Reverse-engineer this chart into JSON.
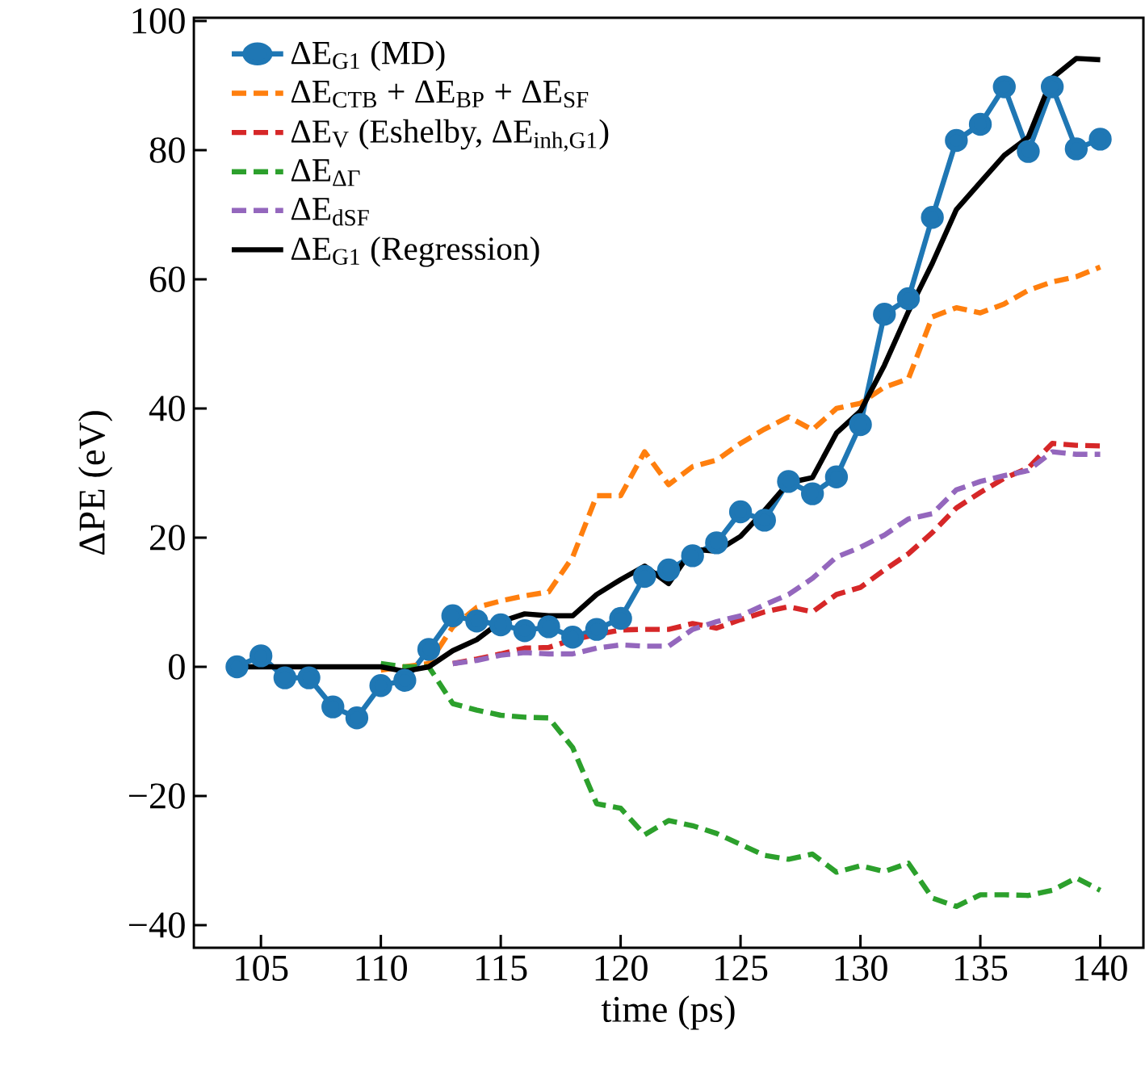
{
  "chart_data": {
    "type": "line",
    "xlabel": "time (ps)",
    "ylabel": "ΔPE (eV)",
    "xlim": [
      102.2,
      141.8
    ],
    "ylim": [
      -43.5,
      100.5
    ],
    "xticks": [
      105,
      110,
      115,
      120,
      125,
      130,
      135,
      140
    ],
    "yticks": [
      {
        "value": -40,
        "label": "−40"
      },
      {
        "value": -20,
        "label": "−20"
      },
      0,
      20,
      40,
      60,
      80,
      100
    ],
    "legend": "top left",
    "series": [
      {
        "name": "ΔE$_{G1}$ (MD)",
        "color": "#1f77b4",
        "marker": "circle",
        "line_style": "solid",
        "x": [
          104,
          105,
          106,
          107,
          108,
          109,
          110,
          111,
          112,
          113,
          114,
          115,
          116,
          117,
          118,
          119,
          120,
          121,
          122,
          123,
          124,
          125,
          126,
          127,
          128,
          129,
          130,
          131,
          132,
          133,
          134,
          135,
          136,
          137,
          138,
          139,
          140
        ],
        "values": [
          0,
          1.7,
          -1.7,
          -1.7,
          -6.2,
          -7.9,
          -2.9,
          -2.1,
          2.7,
          7.9,
          7.1,
          6.5,
          5.6,
          6.2,
          4.6,
          5.8,
          7.5,
          14,
          15,
          17.2,
          19.2,
          24,
          22.7,
          28.7,
          26.8,
          29.4,
          37.5,
          54.6,
          57,
          69.6,
          81.5,
          84,
          89.8,
          79.8,
          89.8,
          80.2,
          81.7
        ]
      },
      {
        "name": "ΔE$_{CTB}$ + ΔE$_{BP}$ + ΔE$_{SF}$",
        "color": "#ff7f0e",
        "marker": "none",
        "line_style": "dashed",
        "x": [
          110,
          111,
          112,
          113,
          114,
          115,
          116,
          117,
          118,
          119,
          120,
          121,
          122,
          123,
          124,
          125,
          126,
          127,
          128,
          129,
          130,
          131,
          132,
          133,
          134,
          135,
          136,
          137,
          138,
          139,
          140
        ],
        "values": [
          -0.5,
          0,
          0.5,
          6.2,
          9.2,
          10.2,
          11,
          11.6,
          17,
          26.5,
          26.5,
          33.3,
          28.2,
          31,
          32,
          34.6,
          36.8,
          38.7,
          36.7,
          40,
          40.8,
          43.3,
          44.6,
          54.2,
          55.6,
          54.8,
          56.2,
          58.3,
          59.6,
          60.4,
          61.9
        ]
      },
      {
        "name": "ΔE$_{V}$ (Eshelby, ΔE$_{inh,G1}$)",
        "color": "#d62728",
        "marker": "none",
        "line_style": "dashed",
        "x": [
          113,
          114,
          115,
          116,
          117,
          118,
          119,
          120,
          121,
          122,
          123,
          124,
          125,
          126,
          127,
          128,
          129,
          130,
          131,
          132,
          133,
          134,
          135,
          136,
          137,
          138,
          139,
          140
        ],
        "values": [
          0.5,
          1.2,
          2,
          2.9,
          3,
          4.2,
          5,
          5.7,
          5.8,
          5.8,
          6.7,
          6,
          7.3,
          8.5,
          9.3,
          8.5,
          11.2,
          12.3,
          15,
          17.5,
          20.8,
          24.6,
          27,
          29.2,
          30.8,
          34.6,
          34.3,
          34.2
        ]
      },
      {
        "name": "ΔE$_{ΔΓ}$",
        "color": "#2ca02c",
        "marker": "none",
        "line_style": "dashed",
        "x": [
          110,
          111,
          112,
          113,
          114,
          115,
          116,
          117,
          118,
          119,
          120,
          121,
          122,
          123,
          124,
          125,
          126,
          127,
          128,
          129,
          130,
          131,
          132,
          133,
          134,
          135,
          136,
          137,
          138,
          139,
          140
        ],
        "values": [
          0.5,
          0,
          0,
          -5.7,
          -6.7,
          -7.5,
          -7.8,
          -7.9,
          -12.5,
          -21.2,
          -21.9,
          -26,
          -23.8,
          -24.6,
          -25.8,
          -27.5,
          -29.2,
          -29.8,
          -29,
          -31.8,
          -30.8,
          -31.7,
          -30.4,
          -35.8,
          -37.1,
          -35.3,
          -35.3,
          -35.4,
          -34.6,
          -32.7,
          -34.6
        ]
      },
      {
        "name": "ΔE$_{dSF}$",
        "color": "#9467bd",
        "marker": "none",
        "line_style": "dashed",
        "x": [
          113,
          114,
          115,
          116,
          117,
          118,
          119,
          120,
          121,
          122,
          123,
          124,
          125,
          126,
          127,
          128,
          129,
          130,
          131,
          132,
          133,
          134,
          135,
          136,
          137,
          138,
          139,
          140
        ],
        "values": [
          0.5,
          1,
          1.8,
          2.2,
          2,
          2,
          2.9,
          3.4,
          3.2,
          3.2,
          5.8,
          7,
          7.9,
          9.6,
          11.2,
          13.7,
          17,
          18.5,
          20.4,
          22.9,
          23.7,
          27.4,
          28.7,
          29.6,
          30.4,
          33.3,
          32.9,
          32.9
        ]
      },
      {
        "name": "ΔE$_{G1}$ (Regression)",
        "color": "#000000",
        "marker": "none",
        "line_style": "solid",
        "x": [
          104,
          105,
          106,
          107,
          108,
          109,
          110,
          111,
          112,
          113,
          114,
          115,
          116,
          117,
          118,
          119,
          120,
          121,
          122,
          123,
          124,
          125,
          126,
          127,
          128,
          129,
          130,
          131,
          132,
          133,
          134,
          135,
          136,
          137,
          138,
          139,
          140
        ],
        "values": [
          0,
          0,
          0,
          0,
          0,
          0,
          0,
          -0.7,
          0,
          2.5,
          4.2,
          7,
          8.2,
          7.9,
          7.9,
          11.2,
          13.5,
          15.6,
          12.9,
          18.2,
          17.9,
          20.2,
          24.2,
          28.5,
          29.3,
          36.2,
          39.6,
          46.7,
          55,
          62.5,
          70.8,
          75,
          79.2,
          82,
          91.2,
          94.2,
          94
        ]
      }
    ]
  }
}
